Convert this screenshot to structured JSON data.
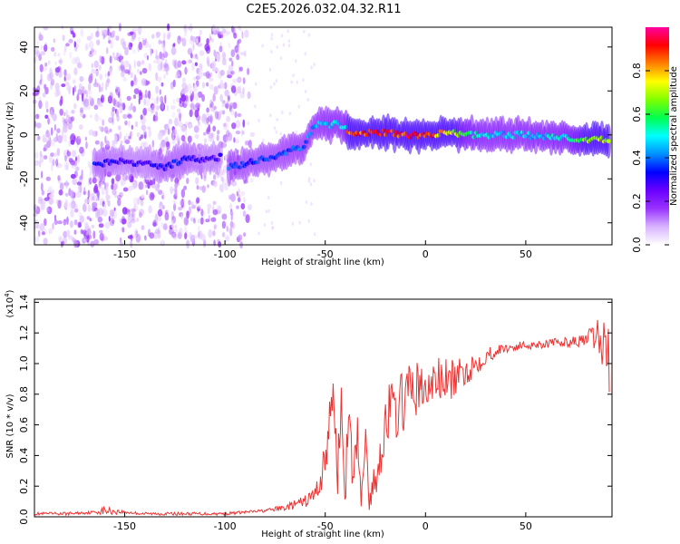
{
  "title": "C2E5.2026.032.04.32.R11",
  "chart_data": [
    {
      "type": "heatmap",
      "xlabel": "Height of straight line (km)",
      "ylabel": "Frequency (Hz)",
      "xlim": [
        -195,
        93
      ],
      "ylim": [
        -50,
        49
      ],
      "xticks": [
        -150,
        -100,
        -50,
        0,
        50
      ],
      "yticks": [
        -40,
        -20,
        0,
        20,
        40
      ],
      "colorbar": {
        "label": "Normalized spectral amplitude",
        "range": [
          0,
          1
        ],
        "ticks": [
          "0.0",
          "0.2",
          "0.4",
          "0.6",
          "0.8"
        ],
        "ticks_values": [
          0,
          0.2,
          0.4,
          0.6,
          0.8
        ],
        "colors": [
          "#ffffff",
          "#d8b4ff",
          "#9932ff",
          "#6a00ff",
          "#0000ff",
          "#0090ff",
          "#00ffff",
          "#00ff50",
          "#80ff00",
          "#ffff00",
          "#ff8000",
          "#ff0000",
          "#ff00a0"
        ]
      },
      "ridge": {
        "x": [
          -165,
          -150,
          -140,
          -130,
          -120,
          -110,
          -100,
          -98,
          -90,
          -80,
          -70,
          -60,
          -55,
          -50,
          -45,
          -40,
          -38,
          -30,
          -20,
          -10,
          0,
          10,
          20,
          30,
          40,
          50,
          60,
          70,
          80,
          90
        ],
        "y": [
          -13,
          -12,
          -13,
          -15,
          -11,
          -11,
          -10,
          -15,
          -13,
          -11,
          -8,
          -5,
          5,
          4,
          5,
          3,
          1,
          1,
          1,
          0,
          0,
          1,
          0,
          0,
          0,
          0,
          -1,
          -1,
          -2,
          -2
        ],
        "amplitude": [
          0.35,
          0.3,
          0.3,
          0.35,
          0.35,
          0.3,
          0.3,
          0.4,
          0.38,
          0.38,
          0.4,
          0.42,
          0.45,
          0.48,
          0.5,
          0.5,
          0.95,
          0.95,
          0.95,
          0.95,
          0.95,
          0.8,
          0.6,
          0.5,
          0.5,
          0.5,
          0.52,
          0.55,
          0.7,
          0.7
        ]
      },
      "noise_region": {
        "x_start": -195,
        "x_end": -85
      }
    },
    {
      "type": "line",
      "xlabel": "Height of straight line (km)",
      "ylabel": "SNR (10 * v/v)",
      "yscale_label": "(x10",
      "yscale_exponent": "4",
      "yscale_suffix": ")",
      "xlim": [
        -195,
        93
      ],
      "ylim": [
        0,
        1.42
      ],
      "xticks": [
        -150,
        -100,
        -50,
        0,
        50
      ],
      "yticks": [
        "0.0",
        "0.2",
        "0.4",
        "0.6",
        "0.8",
        "1.0",
        "1.2",
        "1.4"
      ],
      "yticks_values": [
        0,
        0.2,
        0.4,
        0.6,
        0.8,
        1.0,
        1.2,
        1.4
      ],
      "color": "#ee3333",
      "series": [
        {
          "name": "SNR",
          "x": [
            -195,
            -180,
            -165,
            -160,
            -150,
            -140,
            -130,
            -120,
            -110,
            -100,
            -90,
            -80,
            -70,
            -65,
            -60,
            -55,
            -52,
            -50,
            -48,
            -46,
            -44,
            -42,
            -40,
            -38,
            -36,
            -34,
            -32,
            -30,
            -28,
            -26,
            -24,
            -22,
            -20,
            -18,
            -15,
            -10,
            -5,
            0,
            5,
            10,
            15,
            20,
            25,
            30,
            35,
            40,
            50,
            60,
            70,
            80,
            85,
            88,
            90,
            92
          ],
          "y": [
            0.02,
            0.02,
            0.03,
            0.04,
            0.03,
            0.02,
            0.02,
            0.02,
            0.02,
            0.02,
            0.03,
            0.04,
            0.06,
            0.08,
            0.1,
            0.15,
            0.25,
            0.4,
            0.55,
            0.85,
            0.3,
            0.7,
            0.25,
            0.6,
            0.2,
            0.55,
            0.12,
            0.55,
            0.08,
            0.2,
            0.3,
            0.45,
            0.6,
            0.7,
            0.68,
            0.78,
            0.85,
            0.8,
            0.9,
            0.88,
            0.9,
            0.95,
            1.0,
            1.05,
            1.08,
            1.1,
            1.12,
            1.13,
            1.14,
            1.15,
            1.18,
            1.12,
            1.15,
            1.0
          ],
          "noise_amplitude": [
            0.01,
            0.01,
            0.01,
            0.03,
            0.01,
            0.01,
            0.01,
            0.01,
            0.01,
            0.01,
            0.01,
            0.01,
            0.02,
            0.03,
            0.04,
            0.06,
            0.1,
            0.15,
            0.2,
            0.08,
            0.2,
            0.15,
            0.2,
            0.15,
            0.2,
            0.15,
            0.08,
            0.12,
            0.06,
            0.1,
            0.15,
            0.15,
            0.18,
            0.2,
            0.2,
            0.2,
            0.2,
            0.15,
            0.15,
            0.15,
            0.12,
            0.1,
            0.08,
            0.06,
            0.04,
            0.03,
            0.03,
            0.03,
            0.03,
            0.04,
            0.12,
            0.15,
            0.2,
            0.25
          ]
        }
      ]
    }
  ]
}
